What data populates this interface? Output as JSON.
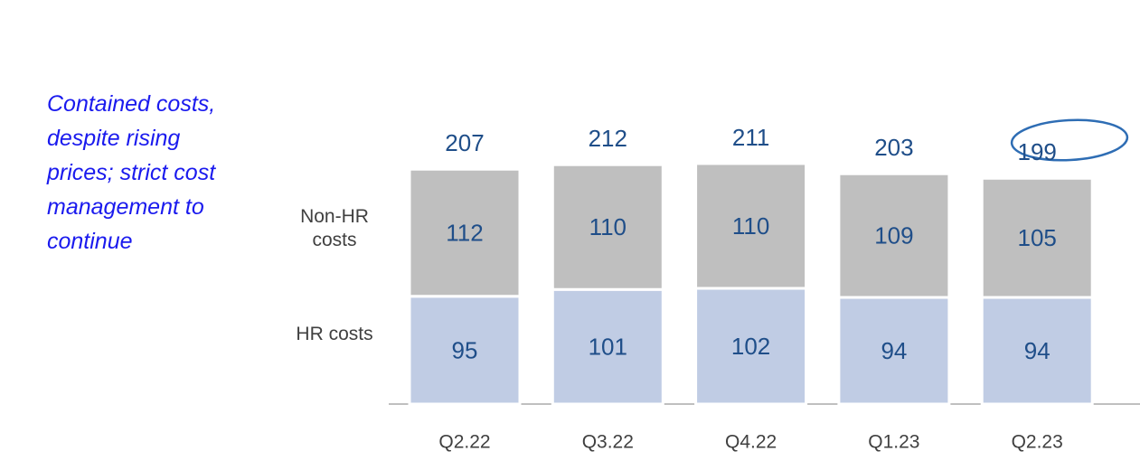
{
  "annotation": "Contained costs, despite rising prices; strict cost management to continue",
  "chart_data": {
    "type": "stacked_bar",
    "categories": [
      "Q2.22",
      "Q3.22",
      "Q4.22",
      "Q1.23",
      "Q2.23"
    ],
    "series": [
      {
        "name": "HR costs",
        "color": "#c0cce4",
        "values": [
          95,
          101,
          102,
          94,
          94
        ]
      },
      {
        "name": "Non-HR costs",
        "color": "#bfbfbf",
        "values": [
          112,
          110,
          110,
          109,
          105
        ]
      }
    ],
    "totals": [
      207,
      212,
      211,
      203,
      199
    ]
  }
}
